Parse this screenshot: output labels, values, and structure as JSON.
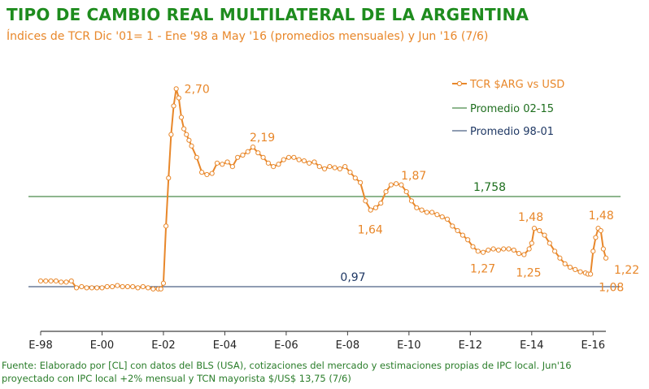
{
  "title": "TIPO DE CAMBIO REAL MULTILATERAL DE LA ARGENTINA",
  "subtitle": "Índices de TCR Dic '01= 1 - Ene '98 a May '16 (promedios mensuales) y Jun '16 (7/6)",
  "source_line1": "Fuente: Elaborado por [CL] con datos del BLS (USA), cotizaciones del mercado y estimaciones propias de IPC local.  Jun'16",
  "source_line2": "proyectado con IPC local +2% mensual y TCN mayorista $/US$ 13,75 (7/6)",
  "colors": {
    "title": "#1e8c1e",
    "series": "#e8872a",
    "avg_02_15": "#1e6e1e",
    "avg_98_01": "#1f3864",
    "axis": "#404040"
  },
  "chart_data": {
    "type": "line",
    "xlabel": "",
    "ylabel": "",
    "x_ticks": [
      "E-98",
      "E-00",
      "E-02",
      "E-04",
      "E-06",
      "E-08",
      "E-10",
      "E-12",
      "E-14",
      "E-16"
    ],
    "xlim": [
      "1998-01",
      "2016-06"
    ],
    "ylim": [
      0.65,
      2.9
    ],
    "grid": false,
    "legend_position": "top-right",
    "series": [
      {
        "name": "TCR $ARG vs USD",
        "x": [
          "1998-01",
          "1998-03",
          "1998-05",
          "1998-07",
          "1998-09",
          "1998-11",
          "1999-01",
          "1999-03",
          "1999-05",
          "1999-07",
          "1999-09",
          "1999-11",
          "2000-01",
          "2000-03",
          "2000-05",
          "2000-07",
          "2000-09",
          "2000-11",
          "2001-01",
          "2001-03",
          "2001-05",
          "2001-07",
          "2001-09",
          "2001-11",
          "2001-12",
          "2002-01",
          "2002-02",
          "2002-03",
          "2002-04",
          "2002-05",
          "2002-06",
          "2002-07",
          "2002-08",
          "2002-09",
          "2002-10",
          "2002-11",
          "2002-12",
          "2003-02",
          "2003-04",
          "2003-06",
          "2003-08",
          "2003-10",
          "2003-12",
          "2004-02",
          "2004-04",
          "2004-06",
          "2004-08",
          "2004-10",
          "2004-12",
          "2005-02",
          "2005-04",
          "2005-06",
          "2005-08",
          "2005-10",
          "2005-12",
          "2006-02",
          "2006-04",
          "2006-06",
          "2006-08",
          "2006-10",
          "2006-12",
          "2007-02",
          "2007-04",
          "2007-06",
          "2007-08",
          "2007-10",
          "2007-12",
          "2008-02",
          "2008-04",
          "2008-06",
          "2008-08",
          "2008-10",
          "2008-12",
          "2009-02",
          "2009-04",
          "2009-06",
          "2009-08",
          "2009-10",
          "2009-12",
          "2010-02",
          "2010-04",
          "2010-06",
          "2010-08",
          "2010-10",
          "2010-12",
          "2011-02",
          "2011-04",
          "2011-06",
          "2011-08",
          "2011-10",
          "2011-12",
          "2012-02",
          "2012-04",
          "2012-06",
          "2012-08",
          "2012-10",
          "2012-12",
          "2013-02",
          "2013-04",
          "2013-06",
          "2013-08",
          "2013-10",
          "2013-12",
          "2014-01",
          "2014-02",
          "2014-04",
          "2014-06",
          "2014-08",
          "2014-10",
          "2014-12",
          "2015-02",
          "2015-04",
          "2015-06",
          "2015-08",
          "2015-10",
          "2015-11",
          "2015-12",
          "2016-01",
          "2016-02",
          "2016-03",
          "2016-04",
          "2016-05",
          "2016-06"
        ],
        "y": [
          1.02,
          1.02,
          1.02,
          1.02,
          1.01,
          1.01,
          1.02,
          0.96,
          0.97,
          0.96,
          0.96,
          0.96,
          0.96,
          0.97,
          0.97,
          0.98,
          0.97,
          0.97,
          0.97,
          0.96,
          0.97,
          0.96,
          0.95,
          0.95,
          0.95,
          1.0,
          1.5,
          1.92,
          2.3,
          2.55,
          2.7,
          2.62,
          2.45,
          2.35,
          2.3,
          2.25,
          2.2,
          2.1,
          1.97,
          1.95,
          1.96,
          2.05,
          2.04,
          2.06,
          2.02,
          2.1,
          2.12,
          2.15,
          2.19,
          2.14,
          2.1,
          2.05,
          2.02,
          2.04,
          2.08,
          2.1,
          2.1,
          2.08,
          2.07,
          2.05,
          2.06,
          2.02,
          2.0,
          2.02,
          2.01,
          2.0,
          2.02,
          1.97,
          1.92,
          1.88,
          1.72,
          1.64,
          1.66,
          1.7,
          1.8,
          1.86,
          1.87,
          1.86,
          1.8,
          1.72,
          1.66,
          1.64,
          1.62,
          1.62,
          1.6,
          1.58,
          1.56,
          1.5,
          1.46,
          1.42,
          1.38,
          1.32,
          1.28,
          1.27,
          1.29,
          1.3,
          1.29,
          1.3,
          1.3,
          1.29,
          1.26,
          1.25,
          1.3,
          1.35,
          1.48,
          1.46,
          1.42,
          1.35,
          1.28,
          1.22,
          1.17,
          1.14,
          1.12,
          1.1,
          1.09,
          1.08,
          1.08,
          1.28,
          1.4,
          1.48,
          1.46,
          1.3,
          1.22
        ]
      }
    ],
    "reference_lines": [
      {
        "name": "Promedio 02-15",
        "value": 1.758,
        "label": "1,758"
      },
      {
        "name": "Promedio 98-01",
        "value": 0.97,
        "label": "0,97"
      }
    ],
    "annotations": [
      {
        "text": "2,70",
        "x": "2002-06",
        "y": 2.7
      },
      {
        "text": "2,19",
        "x": "2004-12",
        "y": 2.19
      },
      {
        "text": "1,64",
        "x": "2008-10",
        "y": 1.64
      },
      {
        "text": "1,87",
        "x": "2009-08",
        "y": 1.87
      },
      {
        "text": "1,27",
        "x": "2012-06",
        "y": 1.27
      },
      {
        "text": "1,25",
        "x": "2013-10",
        "y": 1.25
      },
      {
        "text": "1,48",
        "x": "2014-02",
        "y": 1.48
      },
      {
        "text": "1,48",
        "x": "2016-03",
        "y": 1.48
      },
      {
        "text": "1,08",
        "x": "2015-12",
        "y": 1.08
      },
      {
        "text": "1,22",
        "x": "2016-06",
        "y": 1.22
      }
    ]
  }
}
